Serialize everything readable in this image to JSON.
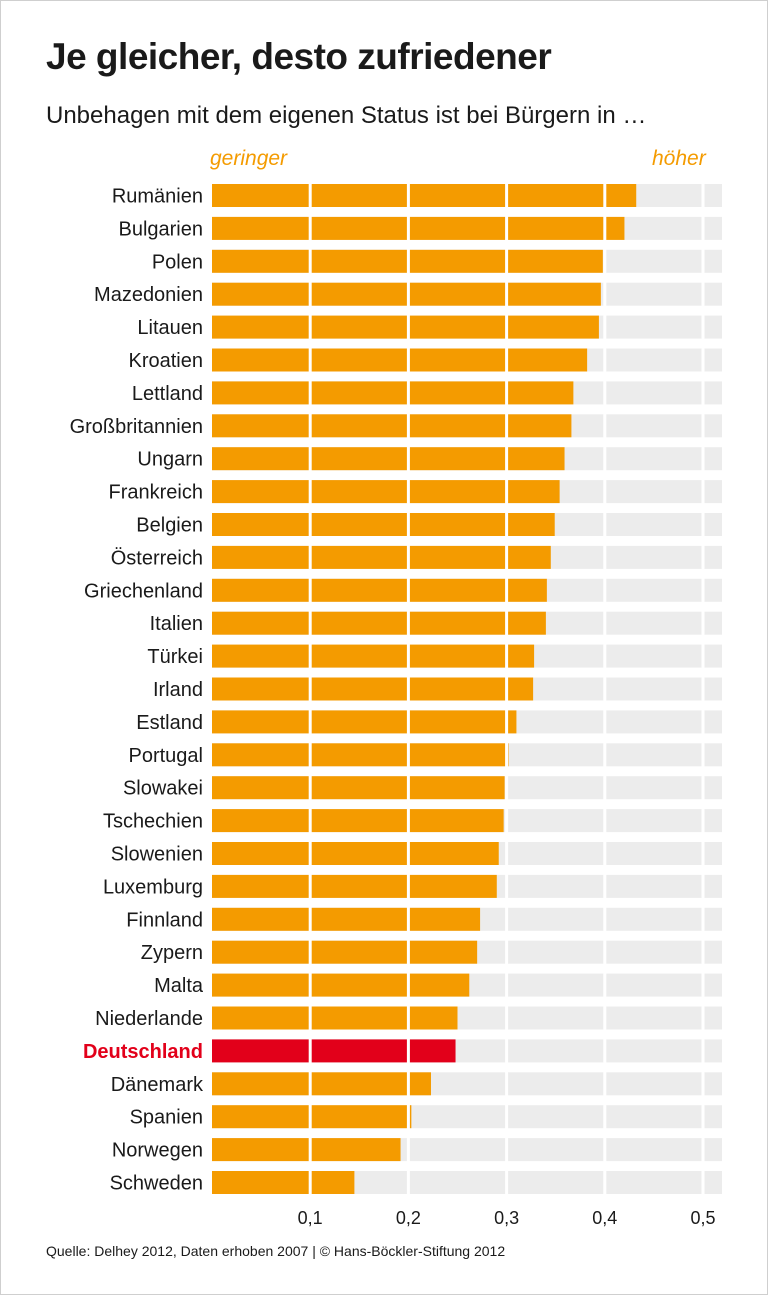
{
  "header": {
    "title": "Je gleicher, desto zufriedener",
    "subtitle": "Unbehagen mit dem eigenen Status ist bei Bürgern in …",
    "scale_low": "geringer",
    "scale_high": "höher"
  },
  "footer": {
    "source": "Quelle: Delhey 2012, Daten erhoben 2007 | © Hans-Böckler-Stiftung 2012"
  },
  "colors": {
    "bar": "#f49b00",
    "highlight": "#e2001a",
    "track": "#ececec",
    "text": "#1a1a1a"
  },
  "chart_data": {
    "type": "bar",
    "orientation": "horizontal",
    "title": "Je gleicher, desto zufriedener",
    "xlabel": "",
    "ylabel": "",
    "xlim": [
      0,
      0.52
    ],
    "x_ticks": [
      {
        "value": 0.1,
        "label": "0,1"
      },
      {
        "value": 0.2,
        "label": "0,2"
      },
      {
        "value": 0.3,
        "label": "0,3"
      },
      {
        "value": 0.4,
        "label": "0,4"
      },
      {
        "value": 0.5,
        "label": "0,5"
      }
    ],
    "highlight": "Deutschland",
    "categories": [
      "Rumänien",
      "Bulgarien",
      "Polen",
      "Mazedonien",
      "Litauen",
      "Kroatien",
      "Lettland",
      "Großbritannien",
      "Ungarn",
      "Frankreich",
      "Belgien",
      "Österreich",
      "Griechenland",
      "Italien",
      "Türkei",
      "Irland",
      "Estland",
      "Portugal",
      "Slowakei",
      "Tschechien",
      "Slowenien",
      "Luxemburg",
      "Finnland",
      "Zypern",
      "Malta",
      "Niederlande",
      "Deutschland",
      "Dänemark",
      "Spanien",
      "Norwegen",
      "Schweden"
    ],
    "values": [
      0.432,
      0.42,
      0.398,
      0.396,
      0.394,
      0.382,
      0.368,
      0.366,
      0.359,
      0.354,
      0.349,
      0.345,
      0.341,
      0.34,
      0.328,
      0.327,
      0.31,
      0.302,
      0.298,
      0.297,
      0.292,
      0.29,
      0.273,
      0.27,
      0.262,
      0.25,
      0.248,
      0.223,
      0.203,
      0.192,
      0.145
    ]
  }
}
